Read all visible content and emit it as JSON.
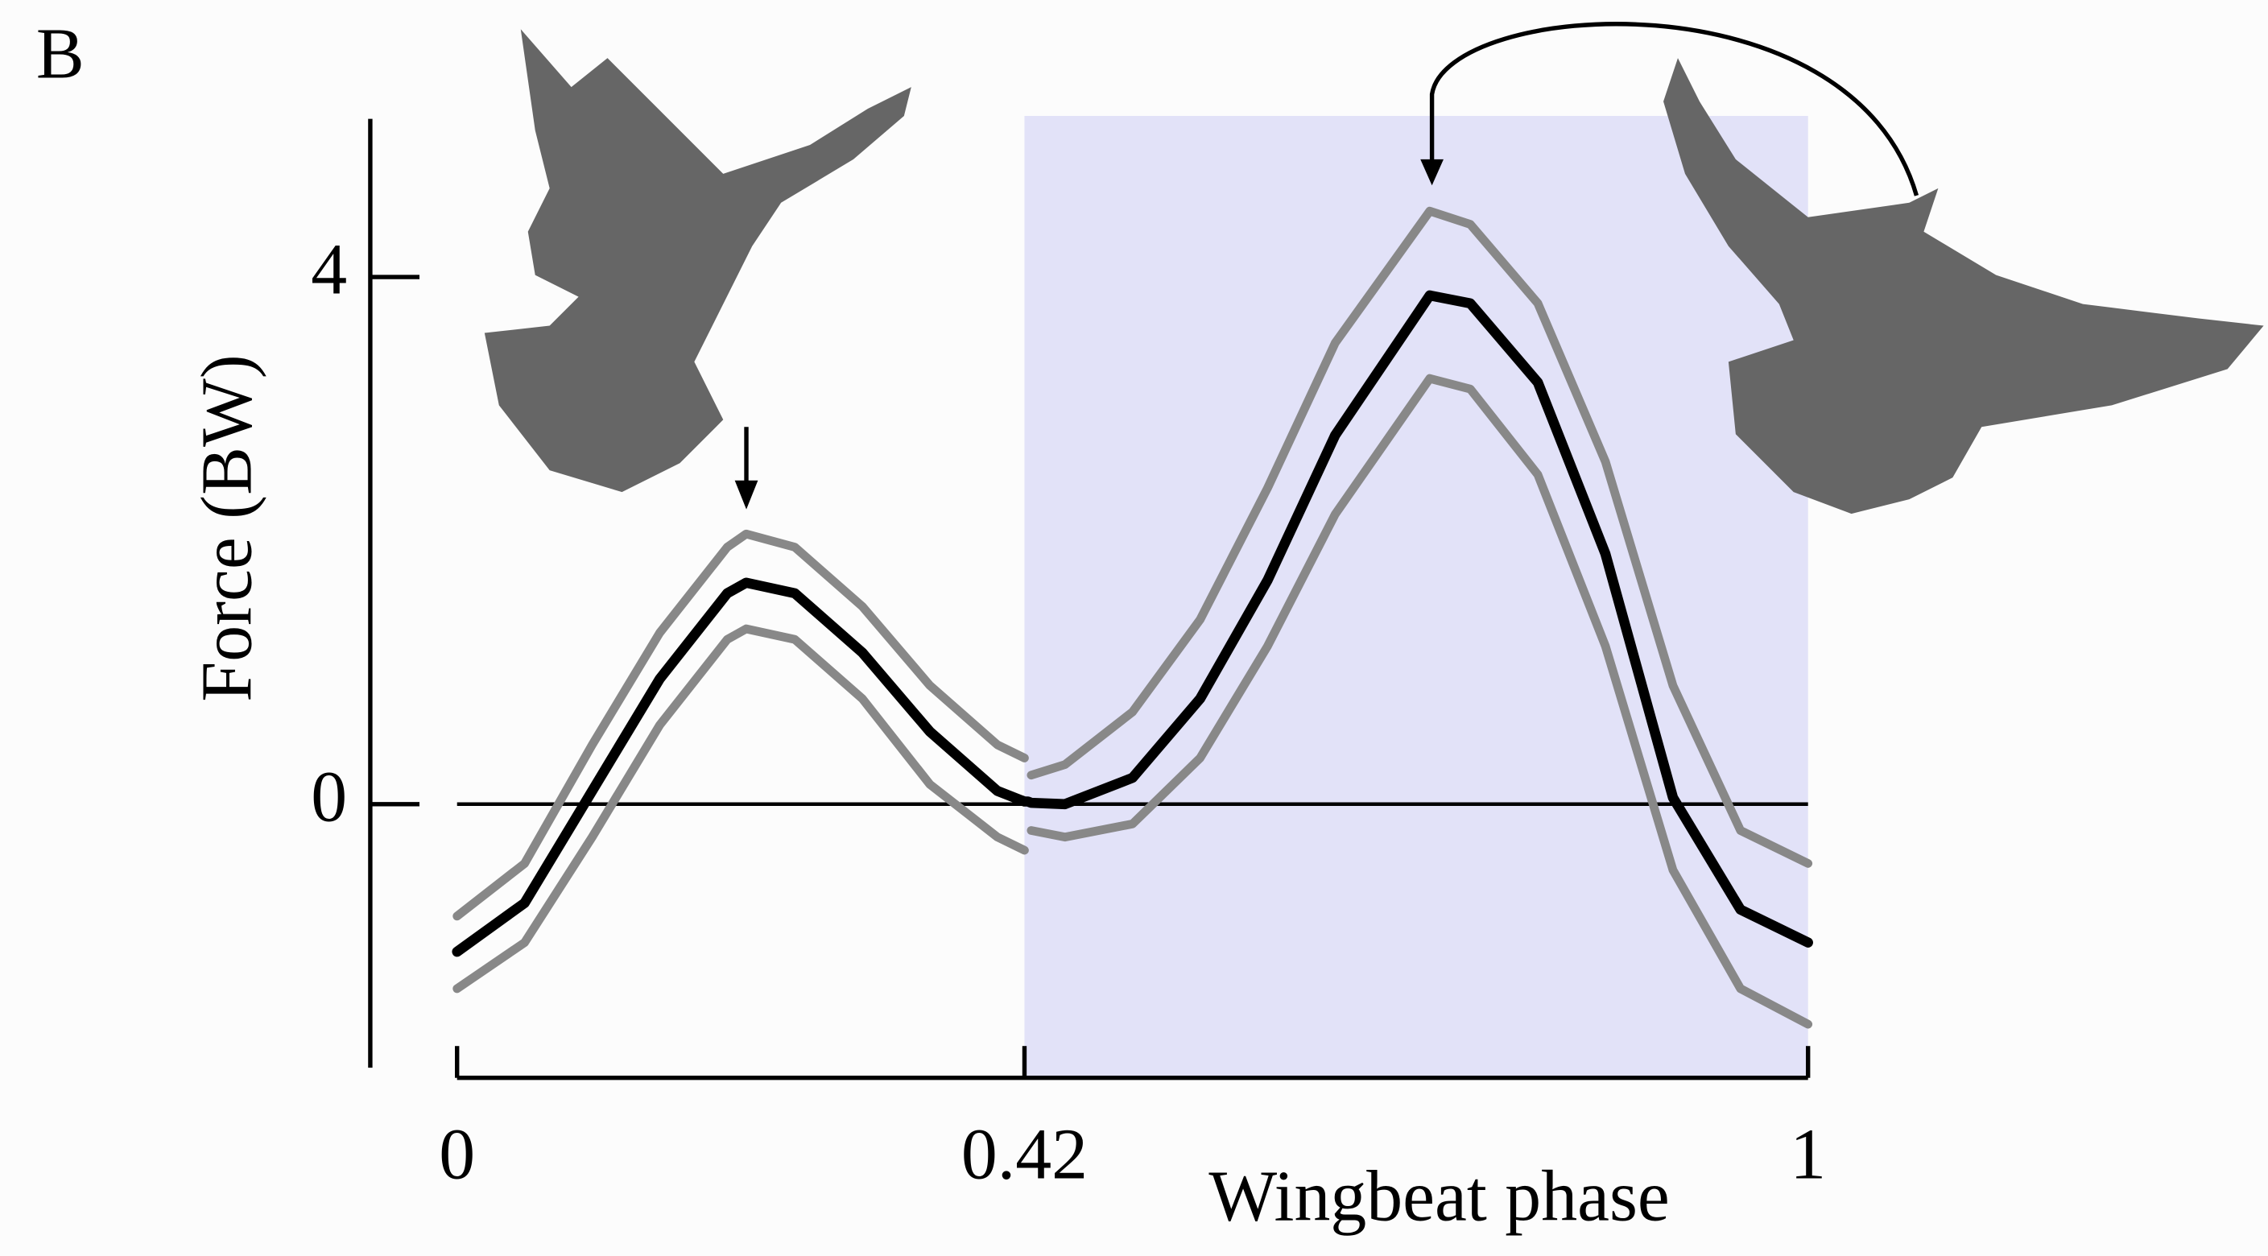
{
  "chart_data": {
    "type": "line",
    "panel_label": "B",
    "ylabel": "Force (BW)",
    "xlabel": "Wingbeat phase",
    "x": [
      0,
      0.05,
      0.1,
      0.15,
      0.2,
      0.214,
      0.25,
      0.3,
      0.35,
      0.4,
      0.42,
      0.4225,
      0.425,
      0.45,
      0.5,
      0.55,
      0.6,
      0.65,
      0.72,
      0.75,
      0.8,
      0.85,
      0.9,
      0.95,
      1
    ],
    "series": [
      {
        "color": "#888888",
        "values": [
          -0.85,
          -0.45,
          0.45,
          1.3,
          1.95,
          2.05,
          1.95,
          1.5,
          0.9,
          0.45,
          0.35,
          null,
          0.22,
          0.3,
          0.7,
          1.4,
          2.4,
          3.5,
          4.5,
          4.4,
          3.8,
          2.6,
          0.9,
          -0.2,
          -0.45
        ]
      },
      {
        "color": "#888888",
        "values": [
          -1.4,
          -1.05,
          -0.25,
          0.6,
          1.25,
          1.33,
          1.25,
          0.8,
          0.15,
          -0.25,
          -0.35,
          null,
          -0.2,
          -0.25,
          -0.15,
          0.35,
          1.2,
          2.2,
          3.23,
          3.15,
          2.5,
          1.2,
          -0.5,
          -1.4,
          -1.67
        ]
      },
      {
        "color": "#000000",
        "values": [
          -1.12,
          -0.75,
          0.1,
          0.95,
          1.6,
          1.68,
          1.6,
          1.15,
          0.55,
          0.1,
          0.02,
          0.02,
          0.01,
          0.0,
          0.2,
          0.8,
          1.7,
          2.8,
          3.86,
          3.8,
          3.2,
          1.9,
          0.05,
          -0.8,
          -1.05
        ]
      }
    ],
    "xlim": [
      0,
      1
    ],
    "xticks": [
      0,
      0.42,
      1
    ],
    "ylim": [
      -2,
      5.2
    ],
    "yticks": [
      0,
      4
    ],
    "hlines": [
      0
    ],
    "shaded_region": {
      "x": [
        0.42,
        1
      ],
      "color": "#e2e2f8"
    }
  }
}
